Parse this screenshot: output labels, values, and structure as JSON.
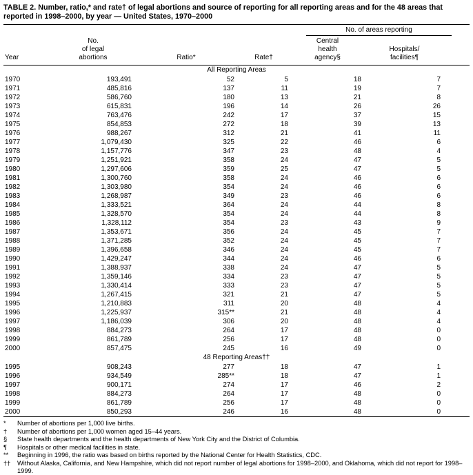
{
  "title": "TABLE 2. Number, ratio,* and rate† of legal abortions and source of reporting for all reporting areas and for the 48 areas that reported in 1998–2000, by year — United States, 1970–2000",
  "table": {
    "spanner": "No. of areas reporting",
    "columns": {
      "year": "Year",
      "abortions": "No.\nof legal\nabortions",
      "ratio": "Ratio*",
      "rate": "Rate†",
      "agency": "Central\nhealth\nagency§",
      "hospitals": "Hospitals/\nfacilities¶"
    },
    "sections": [
      {
        "label": "All Reporting Areas",
        "rows": [
          [
            "1970",
            "193,491",
            "52",
            "5",
            "18",
            "7"
          ],
          [
            "1971",
            "485,816",
            "137",
            "11",
            "19",
            "7"
          ],
          [
            "1972",
            "586,760",
            "180",
            "13",
            "21",
            "8"
          ],
          [
            "1973",
            "615,831",
            "196",
            "14",
            "26",
            "26"
          ],
          [
            "1974",
            "763,476",
            "242",
            "17",
            "37",
            "15"
          ],
          [
            "1975",
            "854,853",
            "272",
            "18",
            "39",
            "13"
          ],
          [
            "1976",
            "988,267",
            "312",
            "21",
            "41",
            "11"
          ],
          [
            "1977",
            "1,079,430",
            "325",
            "22",
            "46",
            "6"
          ],
          [
            "1978",
            "1,157,776",
            "347",
            "23",
            "48",
            "4"
          ],
          [
            "1979",
            "1,251,921",
            "358",
            "24",
            "47",
            "5"
          ],
          [
            "1980",
            "1,297,606",
            "359",
            "25",
            "47",
            "5"
          ],
          [
            "1981",
            "1,300,760",
            "358",
            "24",
            "46",
            "6"
          ],
          [
            "1982",
            "1,303,980",
            "354",
            "24",
            "46",
            "6"
          ],
          [
            "1983",
            "1,268,987",
            "349",
            "23",
            "46",
            "6"
          ],
          [
            "1984",
            "1,333,521",
            "364",
            "24",
            "44",
            "8"
          ],
          [
            "1985",
            "1,328,570",
            "354",
            "24",
            "44",
            "8"
          ],
          [
            "1986",
            "1,328,112",
            "354",
            "23",
            "43",
            "9"
          ],
          [
            "1987",
            "1,353,671",
            "356",
            "24",
            "45",
            "7"
          ],
          [
            "1988",
            "1,371,285",
            "352",
            "24",
            "45",
            "7"
          ],
          [
            "1989",
            "1,396,658",
            "346",
            "24",
            "45",
            "7"
          ],
          [
            "1990",
            "1,429,247",
            "344",
            "24",
            "46",
            "6"
          ],
          [
            "1991",
            "1,388,937",
            "338",
            "24",
            "47",
            "5"
          ],
          [
            "1992",
            "1,359,146",
            "334",
            "23",
            "47",
            "5"
          ],
          [
            "1993",
            "1,330,414",
            "333",
            "23",
            "47",
            "5"
          ],
          [
            "1994",
            "1,267,415",
            "321",
            "21",
            "47",
            "5"
          ],
          [
            "1995",
            "1,210,883",
            "311",
            "20",
            "48",
            "4"
          ],
          [
            "1996",
            "1,225,937",
            "315**",
            "21",
            "48",
            "4"
          ],
          [
            "1997",
            "1,186,039",
            "306",
            "20",
            "48",
            "4"
          ],
          [
            "1998",
            "884,273",
            "264",
            "17",
            "48",
            "0"
          ],
          [
            "1999",
            "861,789",
            "256",
            "17",
            "48",
            "0"
          ],
          [
            "2000",
            "857,475",
            "245",
            "16",
            "49",
            "0"
          ]
        ]
      },
      {
        "label": "48 Reporting Areas††",
        "rows": [
          [
            "1995",
            "908,243",
            "277",
            "18",
            "47",
            "1"
          ],
          [
            "1996",
            "934,549",
            "285**",
            "18",
            "47",
            "1"
          ],
          [
            "1997",
            "900,171",
            "274",
            "17",
            "46",
            "2"
          ],
          [
            "1998",
            "884,273",
            "264",
            "17",
            "48",
            "0"
          ],
          [
            "1999",
            "861,789",
            "256",
            "17",
            "48",
            "0"
          ],
          [
            "2000",
            "850,293",
            "246",
            "16",
            "48",
            "0"
          ]
        ]
      }
    ]
  },
  "footnotes": [
    {
      "symbol": "*",
      "text": "Number of abortions per 1,000 live births."
    },
    {
      "symbol": "†",
      "text": "Number of abortions per 1,000 women aged 15–44 years."
    },
    {
      "symbol": "§",
      "text": "State health departments and the health departments of New York City and the District of Columbia."
    },
    {
      "symbol": "¶",
      "text": "Hospitals or other medical facilities in state."
    },
    {
      "symbol": "**",
      "text": "Beginning in 1996, the ratio was based on births reported by the National Center for Health Statistics, CDC."
    },
    {
      "symbol": "††",
      "text": "Without Alaska, California, and New Hampshire, which did not report number of legal abortions for 1998–2000, and Oklahoma, which did not report for 1998–1999."
    }
  ]
}
